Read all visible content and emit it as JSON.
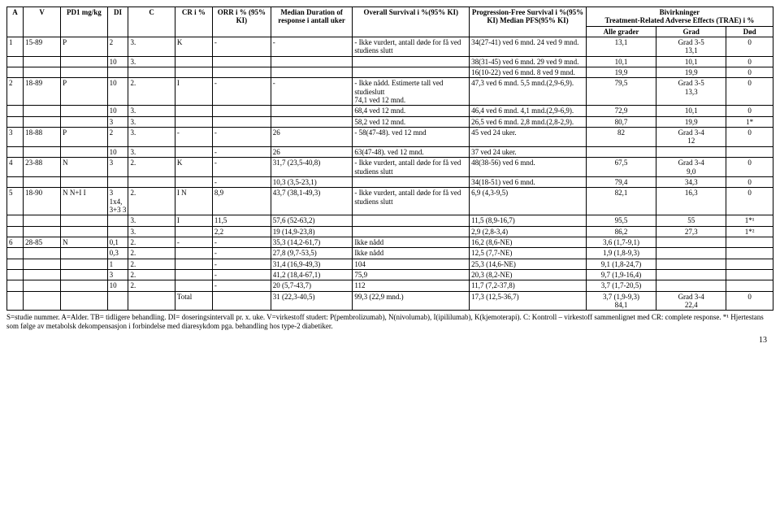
{
  "headers": {
    "a": "A",
    "v": "V",
    "pd1": "PD1 mg/kg",
    "di": "DI",
    "c": "C",
    "cr": "CR i %",
    "orr": "ORR i % (95% KI)",
    "median": "Median Duration of response i antall uker",
    "os": "Overall Survival i %(95% KI)",
    "pfs": "Progression-Free Survival i %(95% KI) Median PFS(95% KI)",
    "bivirkninger": "Bivirkninger",
    "trae": "Treatment-Related Adverse Effects (TRAE) i %",
    "alle": "Alle grader",
    "grad": "Grad",
    "dod": "Død"
  },
  "rows": [
    {
      "a": "1",
      "v": "15-89",
      "pd1": "P",
      "di": "2",
      "c": "3.",
      "cr": "K",
      "orr": "-",
      "med": "-",
      "os": "-",
      "os2": "Ikke vurdert, antall døde for få ved studiens slutt",
      "pfs": "34(27-41) ved 6 mnd. 24 ved 9 mnd.",
      "alle": "13,1",
      "grad": "Grad 3-5",
      "grad2": "13,1",
      "dod": "0"
    },
    {
      "a": "",
      "v": "",
      "pd1": "",
      "di": "10",
      "c": "3.",
      "cr": "",
      "orr": "",
      "med": "",
      "os": "",
      "os2": "",
      "pfs": "38(31-45) ved 6 mnd. 29 ved 9 mnd.",
      "alle": "10,1",
      "grad": "10,1",
      "dod": "0"
    },
    {
      "a": "",
      "v": "",
      "pd1": "",
      "di": "",
      "c": "",
      "cr": "",
      "orr": "",
      "med": "",
      "os": "",
      "os2": "",
      "pfs": "16(10-22) ved 6 mnd. 8 ved 9 mnd.",
      "alle": "19,9",
      "grad": "19,9",
      "dod": "0"
    },
    {
      "a": "2",
      "v": "18-89",
      "pd1": "P",
      "di": "10",
      "c": "2.",
      "cr": "I",
      "orr": "-",
      "med": "-",
      "os": "-",
      "os2": "Ikke nådd. Estimerte tall ved studieslutt",
      "os3": "74,1 ved 12 mnd.",
      "pfs": "47,3 ved 6 mnd. 5,5 mnd.(2,9-6,9).",
      "alle": "79,5",
      "grad": "Grad 3-5",
      "grad2": "13,3",
      "dod": "0"
    },
    {
      "a": "",
      "v": "",
      "pd1": "",
      "di": "10",
      "c": "3.",
      "cr": "",
      "orr": "",
      "med": "",
      "os": "",
      "os2": "68,4 ved 12 mnd.",
      "pfs": "46,4 ved 6 mnd. 4,1 mnd.(2,9-6,9).",
      "alle": "72,9",
      "grad": "10,1",
      "dod": "0"
    },
    {
      "a": "",
      "v": "",
      "pd1": "",
      "di": "3",
      "c": "3.",
      "cr": "",
      "orr": "",
      "med": "",
      "os": "",
      "os2": "58,2 ved 12 mnd.",
      "pfs": "26,5 ved 6 mnd. 2,8 mnd.(2,8-2,9).",
      "alle": "80,7",
      "grad": "19,9",
      "dod": "1*"
    },
    {
      "a": "3",
      "v": "18-88",
      "pd1": "P",
      "di": "2",
      "c": "3.",
      "cr": "-",
      "orr": "-",
      "med": "26",
      "os": "-",
      "os2": "58(47-48). ved 12 mnd",
      "pfs": "45 ved 24 uker.",
      "alle": "82",
      "grad": "Grad 3-4",
      "grad2": "12",
      "dod": "0"
    },
    {
      "a": "",
      "v": "",
      "pd1": "",
      "di": "10",
      "c": "3.",
      "cr": "",
      "orr": "-",
      "med": "26",
      "os": "",
      "os2": "63(47-48). ved 12 mnd.",
      "pfs": "37 ved 24 uker.",
      "alle": "",
      "grad": "",
      "dod": ""
    },
    {
      "a": "4",
      "v": "23-88",
      "pd1": "N",
      "di": "3",
      "c": "2.",
      "cr": "K",
      "orr": "-",
      "med": "31,7 (23,5-40,8)",
      "os": "-",
      "os2": "Ikke vurdert, antall døde for få ved studiens slutt",
      "pfs": "48(38-56) ved 6 mnd.",
      "alle": "67,5",
      "grad": "Grad 3-4",
      "grad2": "9,0",
      "dod": "0"
    },
    {
      "a": "",
      "v": "",
      "pd1": "",
      "di": "",
      "c": "",
      "cr": "",
      "orr": "-",
      "med": "10,3 (3,5-23,1)",
      "os": "",
      "os2": "",
      "pfs": "34(18-51) ved 6 mnd.",
      "alle": "79,4",
      "grad": "34,3",
      "dod": "0"
    },
    {
      "a": "5",
      "v": "18-90",
      "pd1": "N N+I I",
      "di": "3 1x4, 3+3 3",
      "c": "2.",
      "cr": "I N",
      "orr": "8,9",
      "med": "43,7 (38,1-49,3)",
      "os": "-",
      "os2": "Ikke vurdert, antall døde for få ved studiens slutt",
      "pfs": "6,9 (4,3-9,5)",
      "alle": "82,1",
      "grad": "16,3",
      "dod": "0"
    },
    {
      "a": "",
      "v": "",
      "pd1": "",
      "di": "",
      "c": "3.",
      "cr": "I",
      "orr": "11,5",
      "med": "57,6 (52-63,2)",
      "os": "",
      "os2": "",
      "pfs": "11,5 (8,9-16,7)",
      "alle": "95,5",
      "grad": "55",
      "dod": "1*¹"
    },
    {
      "a": "",
      "v": "",
      "pd1": "",
      "di": "",
      "c": "3.",
      "cr": "",
      "orr": "2,2",
      "med": "19 (14,9-23,8)",
      "os": "",
      "os2": "",
      "pfs": "2,9 (2,8-3,4)",
      "alle": "86,2",
      "grad": "27,3",
      "dod": "1*²"
    },
    {
      "a": "6",
      "v": "28-85",
      "pd1": "N",
      "di": "0,1",
      "c": "2.",
      "cr": "-",
      "orr": "-",
      "med": "35,3 (14,2-61,7)",
      "os": "Ikke nådd",
      "os2": "",
      "pfs": "16,2 (8,6-NE)",
      "alle": "3,6 (1,7-9,1)",
      "grad": "",
      "dod": ""
    },
    {
      "a": "",
      "v": "",
      "pd1": "",
      "di": "0,3",
      "c": "2.",
      "cr": "",
      "orr": "-",
      "med": "27,8 (9,7-53,5)",
      "os": "Ikke nådd",
      "os2": "",
      "pfs": "12,5 (7,7-NE)",
      "alle": "1,9 (1,8-9,3)",
      "grad": "",
      "dod": ""
    },
    {
      "a": "",
      "v": "",
      "pd1": "",
      "di": "1",
      "c": "2.",
      "cr": "",
      "orr": "-",
      "med": "31,4 (16,9-49,3)",
      "os": "104",
      "os2": "",
      "pfs": "25,3 (14,6-NE)",
      "alle": "9,1 (1,8-24,7)",
      "grad": "",
      "dod": ""
    },
    {
      "a": "",
      "v": "",
      "pd1": "",
      "di": "3",
      "c": "2.",
      "cr": "",
      "orr": "-",
      "med": "41,2 (18,4-67,1)",
      "os": "75,9",
      "os2": "",
      "pfs": "20,3 (8,2-NE)",
      "alle": "9,7 (1,9-16,4)",
      "grad": "",
      "dod": ""
    },
    {
      "a": "",
      "v": "",
      "pd1": "",
      "di": "10",
      "c": "2.",
      "cr": "",
      "orr": "-",
      "med": "20 (5,7-43,7)",
      "os": "112",
      "os2": "",
      "pfs": "11,7 (7,2-37,8)",
      "alle": "3,7 (1,7-20,5)",
      "grad": "",
      "dod": ""
    },
    {
      "a": "",
      "v": "",
      "pd1": "",
      "di": "",
      "c": "",
      "cr": "Total",
      "orr": "",
      "med": "31 (22,3-40,5)",
      "os": "99,3 (22,9 mnd.)",
      "os2": "",
      "pfs": "17,3 (12,5-36,7)",
      "alle": "3,7 (1,9-9,3)",
      "allex": "84,1",
      "grad": "Grad 3-4",
      "grad2": "22,4",
      "dod": "0"
    }
  ],
  "footnote": "S=studie nummer. A=Alder. TB= tidligere behandling. DI= doseringsintervall pr. x. uke. V=virkestoff studert: P(pembrolizumab), N(nivolumab), I(ipililumab), K(kjemoterapi). C: Kontroll – virkestoff sammenlignet med CR: complete response. *¹ Hjertestans som følge av metabolsk dekompensasjon i forbindelse med diaresykdom pga. behandling hos type-2 diabetiker.",
  "page": "13"
}
